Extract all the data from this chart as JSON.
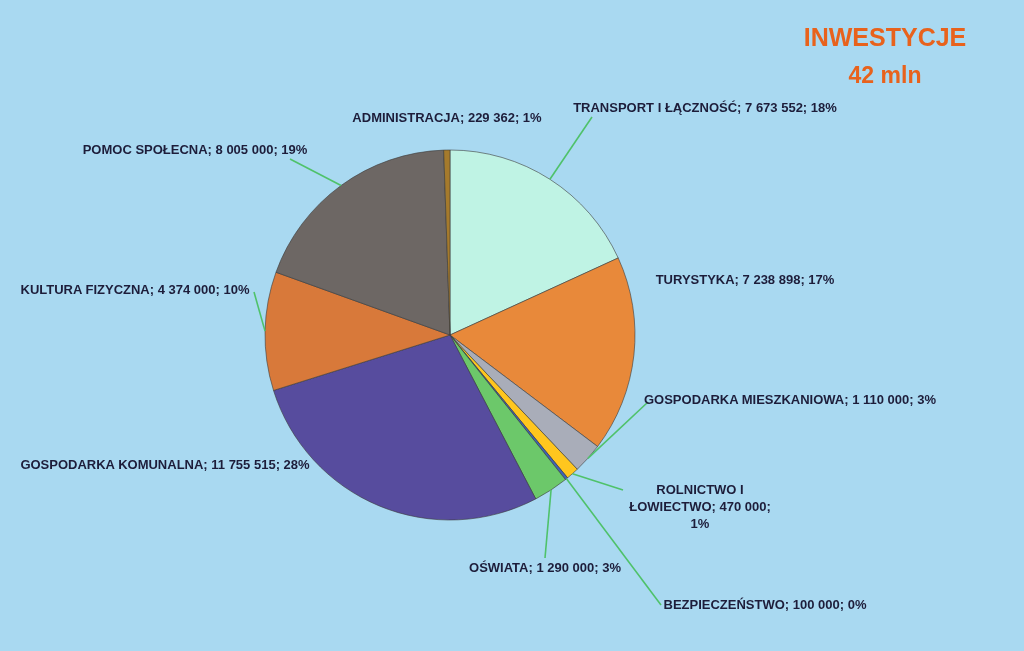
{
  "chart_data": {
    "type": "pie",
    "title": "INWESTYCJE",
    "subtitle": "42 mln",
    "categories": [
      "TRANSPORT I ŁĄCZNOŚĆ",
      "TURYSTYKA",
      "GOSPODARKA MIESZKANIOWA",
      "ROLNICTWO I ŁOWIECTWO",
      "BEZPIECZEŃSTWO",
      "OŚWIATA",
      "GOSPODARKA KOMUNALNA",
      "KULTURA FIZYCZNA",
      "POMOC SPOŁECNA",
      "ADMINISTRACJA"
    ],
    "values": [
      7673552,
      7238898,
      1110000,
      470000,
      100000,
      1290000,
      11755515,
      4374000,
      8005000,
      229362
    ],
    "colors": [
      "#bff3e4",
      "#e8893a",
      "#a9adb9",
      "#ffc61e",
      "#3f63b8",
      "#6cc86a",
      "#574c9e",
      "#d8793a",
      "#6d6764",
      "#a57a2c"
    ],
    "value_labels": [
      "7 673 552; 18%",
      "7 238 898; 17%",
      "1 110 000; 3%",
      "470 000; 1%",
      "100 000; 0%",
      "1 290 000; 3%",
      "11 755 515; 28%",
      "4 374 000; 10%",
      "8 005 000; 19%",
      "229 362; 1%"
    ]
  }
}
